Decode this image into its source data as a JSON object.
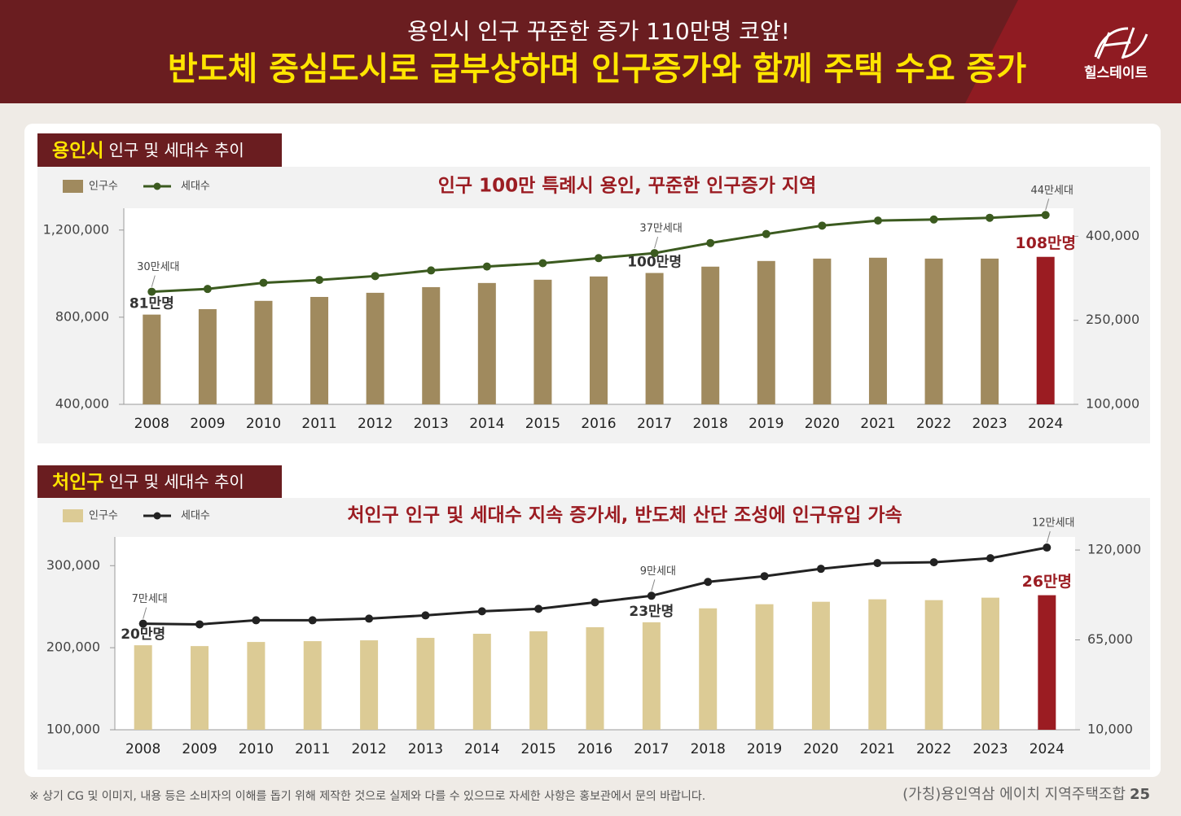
{
  "header": {
    "title": "용인시 인구 꾸준한 증가 110만명 코앞!",
    "subtitle": "반도체 중심도시로 급부상하며 인구증가와 함께 주택 수요 증가",
    "logo_text": "힐스테이트"
  },
  "chart_data": [
    {
      "type": "combo",
      "section_title_highlight": "용인시",
      "section_title": "인구 및 세대수 추이",
      "title": "인구 100만 특례시 용인, 꾸준한 인구증가 지역",
      "categories": [
        "2008",
        "2009",
        "2010",
        "2011",
        "2012",
        "2013",
        "2014",
        "2015",
        "2016",
        "2017",
        "2018",
        "2019",
        "2020",
        "2021",
        "2022",
        "2023",
        "2024"
      ],
      "series": [
        {
          "name": "인구수",
          "type": "bar",
          "color": "#a08a5e",
          "colors": [
            "#a08a5e",
            "#a08a5e",
            "#a08a5e",
            "#a08a5e",
            "#a08a5e",
            "#a08a5e",
            "#a08a5e",
            "#a08a5e",
            "#a08a5e",
            "#a08a5e",
            "#a08a5e",
            "#a08a5e",
            "#a08a5e",
            "#a08a5e",
            "#a08a5e",
            "#a08a5e",
            "#9b1c22"
          ],
          "values": [
            812000,
            837000,
            875000,
            893000,
            912000,
            938000,
            957000,
            972000,
            987000,
            1003000,
            1032000,
            1058000,
            1069000,
            1073000,
            1069000,
            1069000,
            1077000
          ],
          "value_labels": [
            "81만명",
            null,
            null,
            null,
            null,
            null,
            null,
            null,
            null,
            "100만명",
            null,
            null,
            null,
            null,
            null,
            null,
            "108만명"
          ]
        },
        {
          "name": "세대수",
          "type": "line",
          "axis": "y2",
          "color": "#3b5a1f",
          "values": [
            301000,
            306000,
            317000,
            322000,
            329000,
            339000,
            346000,
            352000,
            361000,
            370000,
            388000,
            404000,
            419000,
            428000,
            430000,
            433000,
            438000
          ],
          "value_labels": [
            "30만세대",
            null,
            null,
            null,
            null,
            null,
            null,
            null,
            null,
            "37만세대",
            null,
            null,
            null,
            null,
            null,
            null,
            "44만세대"
          ]
        }
      ],
      "ylim": [
        400000,
        1300000
      ],
      "yticks": [
        {
          "value": 400000,
          "label": "400,000"
        },
        {
          "value": 800000,
          "label": "800,000"
        },
        {
          "value": 1200000,
          "label": "1,200,000"
        }
      ],
      "y2lim": [
        100000,
        450000
      ],
      "y2ticks": [
        {
          "value": 100000,
          "label": "100,000"
        },
        {
          "value": 250000,
          "label": "250,000"
        },
        {
          "value": 400000,
          "label": "400,000"
        }
      ]
    },
    {
      "type": "combo",
      "section_title_highlight": "처인구",
      "section_title": "인구 및 세대수 추이",
      "title": "처인구 인구 및 세대수 지속 증가세, 반도체 산단 조성에 인구유입 가속",
      "categories": [
        "2008",
        "2009",
        "2010",
        "2011",
        "2012",
        "2013",
        "2014",
        "2015",
        "2016",
        "2017",
        "2018",
        "2019",
        "2020",
        "2021",
        "2022",
        "2023",
        "2024"
      ],
      "series": [
        {
          "name": "인구수",
          "type": "bar",
          "color": "#dccb95",
          "colors": [
            "#dccb95",
            "#dccb95",
            "#dccb95",
            "#dccb95",
            "#dccb95",
            "#dccb95",
            "#dccb95",
            "#dccb95",
            "#dccb95",
            "#dccb95",
            "#dccb95",
            "#dccb95",
            "#dccb95",
            "#dccb95",
            "#dccb95",
            "#dccb95",
            "#9b1c22"
          ],
          "values": [
            203000,
            202000,
            207000,
            208000,
            209000,
            212000,
            217000,
            220000,
            225000,
            231000,
            248000,
            253000,
            256000,
            259000,
            258000,
            261000,
            264000
          ],
          "value_labels": [
            "20만명",
            null,
            null,
            null,
            null,
            null,
            null,
            null,
            null,
            "23만명",
            null,
            null,
            null,
            null,
            null,
            null,
            "26만명"
          ]
        },
        {
          "name": "세대수",
          "type": "line",
          "axis": "y2",
          "color": "#222222",
          "values": [
            74900,
            74500,
            77000,
            77000,
            78000,
            80000,
            82500,
            84000,
            88000,
            92000,
            100500,
            104000,
            108500,
            112000,
            112500,
            115000,
            121500
          ],
          "value_labels": [
            "7만세대",
            null,
            null,
            null,
            null,
            null,
            null,
            null,
            null,
            "9만세대",
            null,
            null,
            null,
            null,
            null,
            null,
            "12만세대"
          ]
        }
      ],
      "ylim": [
        100000,
        335000
      ],
      "yticks": [
        {
          "value": 100000,
          "label": "100,000"
        },
        {
          "value": 200000,
          "label": "200,000"
        },
        {
          "value": 300000,
          "label": "300,000"
        }
      ],
      "y2lim": [
        10000,
        128000
      ],
      "y2ticks": [
        {
          "value": 10000,
          "label": "10,000"
        },
        {
          "value": 65000,
          "label": "65,000"
        },
        {
          "value": 120000,
          "label": "120,000"
        }
      ]
    }
  ],
  "footer": {
    "note": "※ 상기 CG 및 이미지, 내용 등은 소비자의 이해를 돕기 위해 제작한 것으로 실제와 다를 수 있으므로 자세한 사항은 홍보관에서 문의 바랍니다.",
    "project": "(가칭)용인역삼 에이치 지역주택조합",
    "page": "25"
  }
}
